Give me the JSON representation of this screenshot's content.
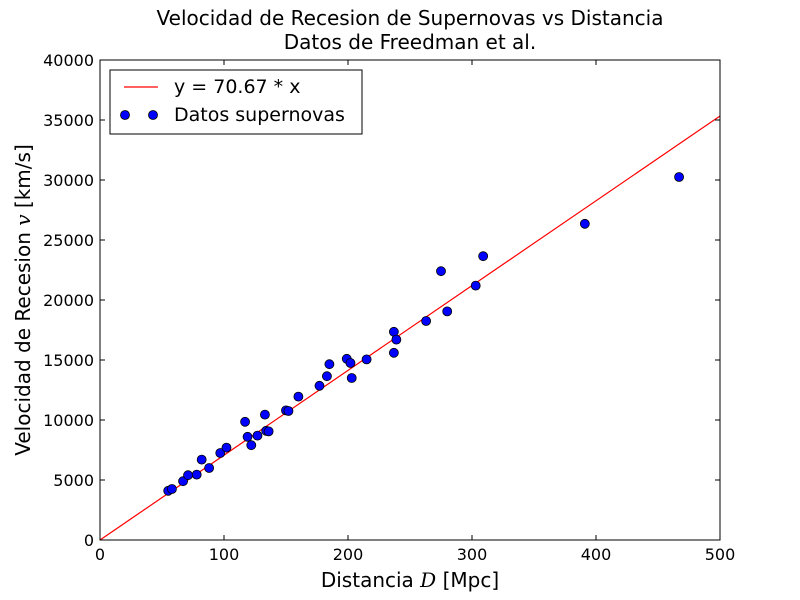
{
  "chart_data": {
    "type": "scatter",
    "title": "Velocidad de Recesion de Supernovas vs Distancia",
    "subtitle": "Datos de Freedman et al.",
    "xlabel": {
      "pre": "Distancia ",
      "var": "D",
      "post": " [Mpc]"
    },
    "ylabel": {
      "pre": "Velocidad de Recesion ",
      "var": "v",
      "post": " [km/s]"
    },
    "xlim": [
      0,
      500
    ],
    "ylim": [
      0,
      40000
    ],
    "xticks": [
      0,
      100,
      200,
      300,
      400,
      500
    ],
    "yticks": [
      0,
      5000,
      10000,
      15000,
      20000,
      25000,
      30000,
      35000,
      40000
    ],
    "grid": false,
    "legend_position": "upper-left",
    "series": [
      {
        "name": "y = 70.67 * x",
        "kind": "line",
        "slope": 70.67,
        "color": "#ff0000"
      },
      {
        "name": "Datos supernovas",
        "kind": "points",
        "color": "#0000ff",
        "points": [
          [
            55,
            4100
          ],
          [
            58,
            4250
          ],
          [
            67,
            4900
          ],
          [
            71,
            5400
          ],
          [
            78,
            5450
          ],
          [
            82,
            6700
          ],
          [
            88,
            6000
          ],
          [
            97,
            7250
          ],
          [
            102,
            7700
          ],
          [
            117,
            9850
          ],
          [
            119,
            8600
          ],
          [
            122,
            7900
          ],
          [
            127,
            8700
          ],
          [
            133,
            10450
          ],
          [
            134,
            9100
          ],
          [
            136,
            9050
          ],
          [
            150,
            10800
          ],
          [
            152,
            10750
          ],
          [
            160,
            11950
          ],
          [
            177,
            12850
          ],
          [
            183,
            13650
          ],
          [
            185,
            14650
          ],
          [
            199,
            15100
          ],
          [
            202,
            14750
          ],
          [
            203,
            13500
          ],
          [
            215,
            15050
          ],
          [
            237,
            17350
          ],
          [
            237,
            15600
          ],
          [
            239,
            16700
          ],
          [
            263,
            18250
          ],
          [
            275,
            22400
          ],
          [
            280,
            19050
          ],
          [
            303,
            21200
          ],
          [
            309,
            23650
          ],
          [
            391,
            26350
          ],
          [
            467,
            30250
          ]
        ]
      }
    ]
  }
}
